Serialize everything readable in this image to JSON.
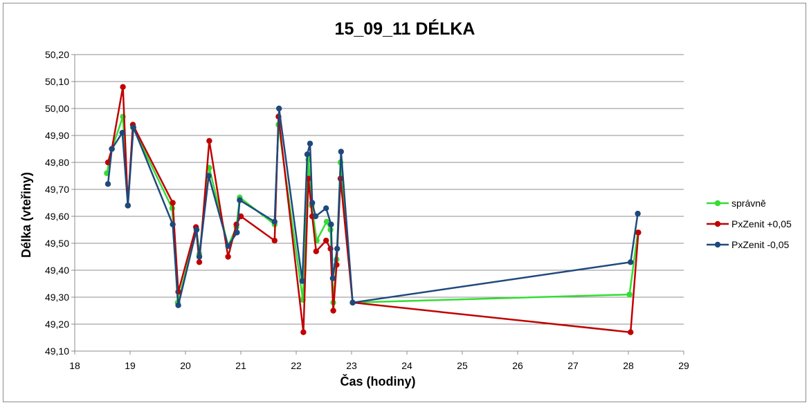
{
  "chart_data": {
    "type": "line",
    "title": "15_09_11 DÉLKA",
    "xlabel": "Čas (hodiny)",
    "ylabel": "Délka (vteřiny)",
    "xlim": [
      18,
      29
    ],
    "ylim": [
      49.1,
      50.2
    ],
    "x_ticks": [
      "18",
      "19",
      "20",
      "21",
      "22",
      "23",
      "24",
      "25",
      "26",
      "27",
      "28",
      "29"
    ],
    "y_ticks": [
      "49,10",
      "49,20",
      "49,30",
      "49,40",
      "49,50",
      "49,60",
      "49,70",
      "49,80",
      "49,90",
      "50,00",
      "50,10",
      "50,20"
    ],
    "grid": "horizontal",
    "legend_position": "right",
    "series": [
      {
        "name": "správně",
        "color": "#33dd33",
        "points": [
          [
            18.58,
            49.76
          ],
          [
            18.67,
            49.85
          ],
          [
            18.87,
            49.97
          ],
          [
            18.96,
            49.64
          ],
          [
            19.05,
            49.93
          ],
          [
            19.76,
            49.63
          ],
          [
            19.86,
            49.28
          ],
          [
            20.2,
            49.55
          ],
          [
            20.25,
            49.46
          ],
          [
            20.43,
            49.78
          ],
          [
            20.77,
            49.49
          ],
          [
            20.92,
            49.56
          ],
          [
            20.98,
            49.67
          ],
          [
            21.61,
            49.57
          ],
          [
            21.68,
            49.94
          ],
          [
            22.12,
            49.29
          ],
          [
            22.22,
            49.81
          ],
          [
            22.28,
            49.64
          ],
          [
            22.37,
            49.51
          ],
          [
            22.55,
            49.58
          ],
          [
            22.62,
            49.55
          ],
          [
            22.67,
            49.28
          ],
          [
            22.73,
            49.44
          ],
          [
            22.8,
            49.8
          ],
          [
            23.02,
            49.28
          ],
          [
            28.02,
            49.31
          ],
          [
            28.17,
            49.54
          ]
        ]
      },
      {
        "name": "PxZenit +0,05",
        "color": "#c00000",
        "points": [
          [
            18.6,
            49.8
          ],
          [
            18.67,
            49.85
          ],
          [
            18.87,
            50.08
          ],
          [
            18.96,
            49.64
          ],
          [
            19.05,
            49.94
          ],
          [
            19.77,
            49.65
          ],
          [
            19.87,
            49.32
          ],
          [
            20.19,
            49.56
          ],
          [
            20.25,
            49.43
          ],
          [
            20.43,
            49.88
          ],
          [
            20.77,
            49.45
          ],
          [
            20.92,
            49.57
          ],
          [
            21.0,
            49.6
          ],
          [
            21.61,
            49.51
          ],
          [
            21.68,
            49.97
          ],
          [
            22.13,
            49.17
          ],
          [
            22.22,
            49.74
          ],
          [
            22.29,
            49.6
          ],
          [
            22.36,
            49.47
          ],
          [
            22.54,
            49.51
          ],
          [
            22.62,
            49.48
          ],
          [
            22.67,
            49.25
          ],
          [
            22.73,
            49.42
          ],
          [
            22.8,
            49.74
          ],
          [
            23.02,
            49.28
          ],
          [
            28.04,
            49.17
          ],
          [
            28.18,
            49.54
          ]
        ]
      },
      {
        "name": "PxZenit -0,05",
        "color": "#1f497d",
        "points": [
          [
            18.6,
            49.72
          ],
          [
            18.67,
            49.85
          ],
          [
            18.86,
            49.91
          ],
          [
            18.96,
            49.64
          ],
          [
            19.06,
            49.93
          ],
          [
            19.77,
            49.57
          ],
          [
            19.87,
            49.27
          ],
          [
            20.2,
            49.55
          ],
          [
            20.25,
            49.45
          ],
          [
            20.42,
            49.75
          ],
          [
            20.77,
            49.49
          ],
          [
            20.93,
            49.54
          ],
          [
            20.98,
            49.66
          ],
          [
            21.61,
            49.58
          ],
          [
            21.69,
            50.0
          ],
          [
            22.11,
            49.36
          ],
          [
            22.2,
            49.83
          ],
          [
            22.25,
            49.87
          ],
          [
            22.29,
            49.65
          ],
          [
            22.35,
            49.6
          ],
          [
            22.54,
            49.63
          ],
          [
            22.63,
            49.57
          ],
          [
            22.66,
            49.37
          ],
          [
            22.74,
            49.48
          ],
          [
            22.81,
            49.84
          ],
          [
            23.02,
            49.28
          ],
          [
            28.04,
            49.43
          ],
          [
            28.17,
            49.61
          ]
        ]
      }
    ]
  }
}
